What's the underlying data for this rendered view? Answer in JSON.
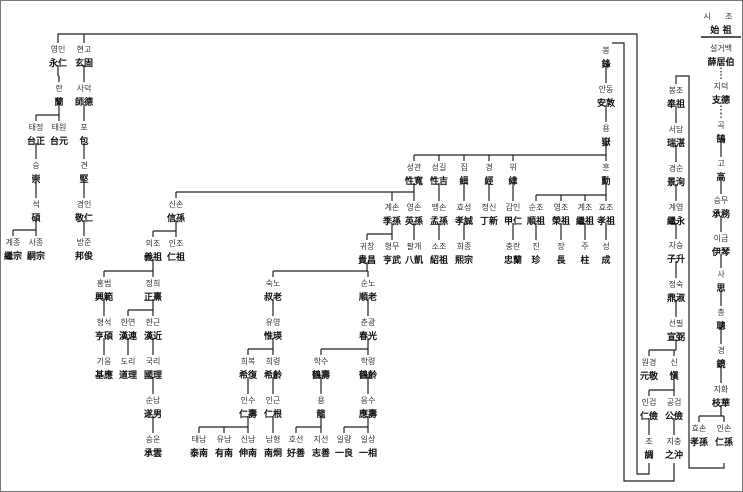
{
  "header": {
    "ko": "시 조",
    "hanja": "始 祖"
  },
  "nodes": [
    {
      "id": "seol",
      "ko": "설거백",
      "hj": "薛居伯"
    },
    {
      "id": "jideok",
      "ko": "지덕",
      "hj": "支德",
      "parent": "seol",
      "dotted": true
    },
    {
      "id": "gok",
      "ko": "곡",
      "hj": "鵠",
      "parent": "jideok",
      "dotted": true
    },
    {
      "id": "go",
      "ko": "고",
      "hj": "高",
      "parent": "gok"
    },
    {
      "id": "seungmu",
      "ko": "승무",
      "hj": "承務",
      "parent": "go"
    },
    {
      "id": "igeum",
      "ko": "이금",
      "hj": "伊琴",
      "parent": "seungmu"
    },
    {
      "id": "sa",
      "ko": "사",
      "hj": "思",
      "parent": "igeum"
    },
    {
      "id": "chong",
      "ko": "총",
      "hj": "聰",
      "parent": "sa"
    },
    {
      "id": "gyeong2",
      "ko": "경",
      "hj": "鏡",
      "parent": "chong"
    },
    {
      "id": "jihwa",
      "ko": "지화",
      "hj": "枝華",
      "parent": "gyeong2"
    },
    {
      "id": "hyoson",
      "ko": "효손",
      "hj": "孝孫",
      "parent": "jihwa"
    },
    {
      "id": "inson",
      "ko": "인손",
      "hj": "仁孫",
      "parent": "jihwa"
    },
    {
      "id": "bongjo",
      "ko": "봉조",
      "hj": "奉祖"
    },
    {
      "id": "seodam",
      "ko": "서담",
      "hj": "瑞湛",
      "parent": "bongjo"
    },
    {
      "id": "gyeongsun",
      "ko": "경순",
      "hj": "景洵",
      "parent": "seodam"
    },
    {
      "id": "gyeyeong",
      "ko": "계영",
      "hj": "繼永",
      "parent": "gyeongsun"
    },
    {
      "id": "juseung",
      "ko": "자승",
      "hj": "子升",
      "parent": "gyeyeong"
    },
    {
      "id": "jeongsuk",
      "ko": "정숙",
      "hj": "鼎淑",
      "parent": "juseung"
    },
    {
      "id": "seonpil",
      "ko": "선필",
      "hj": "宣弼",
      "parent": "jeongsuk"
    },
    {
      "id": "wongyeong",
      "ko": "원경",
      "hj": "元敬",
      "parent": "seonpil"
    },
    {
      "id": "sin",
      "ko": "신",
      "hj": "愼",
      "parent": "seonpil"
    },
    {
      "id": "ingeom",
      "ko": "인검",
      "hj": "仁儉",
      "parent": "sin"
    },
    {
      "id": "gonggeom",
      "ko": "공검",
      "hj": "公儉",
      "parent": "sin"
    },
    {
      "id": "jo",
      "ko": "조",
      "hj": "調",
      "parent": "ingeom"
    },
    {
      "id": "jichung",
      "ko": "지충",
      "hj": "之沖",
      "parent": "gonggeom"
    },
    {
      "id": "bong",
      "ko": "봉",
      "hj": "鋒"
    },
    {
      "id": "andong",
      "ko": "안동",
      "hj": "安敦",
      "parent": "bong"
    },
    {
      "id": "yong",
      "ko": "용",
      "hj": "嶽",
      "parent": "andong"
    },
    {
      "id": "hun",
      "ko": "훈",
      "hj": "勳",
      "parent": "yong"
    },
    {
      "id": "seonggwan",
      "ko": "성관",
      "hj": "性寬",
      "parent": "yong"
    },
    {
      "id": "seonggil",
      "ko": "성길",
      "hj": "性吉",
      "parent": "yong"
    },
    {
      "id": "jip",
      "ko": "집",
      "hj": "緝",
      "parent": "yong"
    },
    {
      "id": "gyeong",
      "ko": "경",
      "hj": "經",
      "parent": "yong"
    },
    {
      "id": "wi",
      "ko": "위",
      "hj": "緯",
      "parent": "yong"
    },
    {
      "id": "sunjo",
      "ko": "순조",
      "hj": "順祖",
      "parent": "hun"
    },
    {
      "id": "yeongjo",
      "ko": "영조",
      "hj": "榮祖",
      "parent": "hun"
    },
    {
      "id": "gyejo",
      "ko": "계조",
      "hj": "繼祖",
      "parent": "hun"
    },
    {
      "id": "hyojo",
      "ko": "효조",
      "hj": "孝祖",
      "parent": "hun"
    },
    {
      "id": "jin",
      "ko": "진",
      "hj": "珍",
      "parent": "sunjo"
    },
    {
      "id": "jang",
      "ko": "장",
      "hj": "長",
      "parent": "yeongjo"
    },
    {
      "id": "ju",
      "ko": "주",
      "hj": "柱",
      "parent": "gyejo"
    },
    {
      "id": "seong",
      "ko": "성",
      "hj": "成",
      "parent": "hyojo"
    },
    {
      "id": "sinson",
      "ko": "신손",
      "hj": "信孫",
      "parent": "seonggwan"
    },
    {
      "id": "gyeson",
      "ko": "계손",
      "hj": "季孫",
      "parent": "seonggwan"
    },
    {
      "id": "yeongson",
      "ko": "영손",
      "hj": "英孫",
      "parent": "seonggwan"
    },
    {
      "id": "maengson",
      "ko": "맹손",
      "hj": "孟孫",
      "parent": "seonggil"
    },
    {
      "id": "hyoseong",
      "ko": "효성",
      "hj": "孝誠",
      "parent": "jip"
    },
    {
      "id": "jeongsin",
      "ko": "정신",
      "hj": "丁新",
      "parent": "gyeong"
    },
    {
      "id": "gabin",
      "ko": "갑인",
      "hj": "甲仁",
      "parent": "wi"
    },
    {
      "id": "gwichang",
      "ko": "귀창",
      "hj": "貴昌",
      "parent": "gyeson"
    },
    {
      "id": "hyeongmu",
      "ko": "형무",
      "hj": "亨武",
      "parent": "gyeson"
    },
    {
      "id": "palgae",
      "ko": "팔개",
      "hj": "八凱",
      "parent": "yeongson"
    },
    {
      "id": "sojo",
      "ko": "소조",
      "hj": "紹祖",
      "parent": "maengson"
    },
    {
      "id": "huijong",
      "ko": "희종",
      "hj": "熙宗",
      "parent": "hyoseong"
    },
    {
      "id": "chungran",
      "ko": "충란",
      "hj": "忠蘭",
      "parent": "gabin"
    },
    {
      "id": "uijo",
      "ko": "의조",
      "hj": "義祖",
      "parent": "sinson"
    },
    {
      "id": "injo",
      "ko": "인조",
      "hj": "仁祖",
      "parent": "sinson"
    },
    {
      "id": "hongbeom",
      "ko": "홍범",
      "hj": "興範",
      "parent": "uijo"
    },
    {
      "id": "jeonghui",
      "ko": "정희",
      "hj": "正熹",
      "parent": "uijo"
    },
    {
      "id": "hyeongseok",
      "ko": "형석",
      "hj": "亨碩",
      "parent": "hongbeom"
    },
    {
      "id": "hanyeon",
      "ko": "한연",
      "hj": "漢連",
      "parent": "jeonghui"
    },
    {
      "id": "hangeun",
      "ko": "한근",
      "hj": "漢近",
      "parent": "jeonghui"
    },
    {
      "id": "gieung",
      "ko": "기응",
      "hj": "基應",
      "parent": "hyeongseok"
    },
    {
      "id": "dori",
      "ko": "도리",
      "hj": "道理",
      "parent": "hanyeon"
    },
    {
      "id": "gukri",
      "ko": "국리",
      "hj": "國理",
      "parent": "hangeun"
    },
    {
      "id": "sunnam",
      "ko": "순남",
      "hj": "遂男",
      "parent": "gukri"
    },
    {
      "id": "seungun",
      "ko": "승운",
      "hj": "承雲",
      "parent": "sunnam"
    },
    {
      "id": "suknо",
      "ko": "숙노",
      "hj": "叔老",
      "parent": "gwichang"
    },
    {
      "id": "sunno",
      "ko": "순노",
      "hj": "順老",
      "parent": "gwichang"
    },
    {
      "id": "yuyeong",
      "ko": "유영",
      "hj": "惟瑛",
      "parent": "suknо"
    },
    {
      "id": "huibok",
      "ko": "희복",
      "hj": "希復",
      "parent": "yuyeong"
    },
    {
      "id": "huiryeong",
      "ko": "희령",
      "hj": "希齡",
      "parent": "yuyeong"
    },
    {
      "id": "insu",
      "ko": "인수",
      "hj": "仁壽",
      "parent": "huibok"
    },
    {
      "id": "ingeun",
      "ko": "인근",
      "hj": "仁根",
      "parent": "huiryeong"
    },
    {
      "id": "taenam",
      "ko": "태남",
      "hj": "泰南",
      "parent": "insu"
    },
    {
      "id": "yunam",
      "ko": "유남",
      "hj": "有南",
      "parent": "insu"
    },
    {
      "id": "sinnam",
      "ko": "신남",
      "hj": "伸南",
      "parent": "insu"
    },
    {
      "id": "namhyeong",
      "ko": "남형",
      "hj": "南炯",
      "parent": "ingeun"
    },
    {
      "id": "chungwang",
      "ko": "춘광",
      "hj": "春光",
      "parent": "sunno"
    },
    {
      "id": "haksu",
      "ko": "학수",
      "hj": "鶴壽",
      "parent": "chungwang"
    },
    {
      "id": "hakryeong",
      "ko": "학령",
      "hj": "鶴齡",
      "parent": "chungwang"
    },
    {
      "id": "yong2",
      "ko": "용",
      "hj": "龍",
      "parent": "haksu"
    },
    {
      "id": "eungsu",
      "ko": "응수",
      "hj": "應壽",
      "parent": "hakryeong"
    },
    {
      "id": "hoseon",
      "ko": "호선",
      "hj": "好善",
      "parent": "yong2"
    },
    {
      "id": "jiseon",
      "ko": "지선",
      "hj": "志善",
      "parent": "yong2"
    },
    {
      "id": "illyang",
      "ko": "일량",
      "hj": "一良",
      "parent": "eungsu"
    },
    {
      "id": "ilsang",
      "ko": "일상",
      "hj": "一相",
      "parent": "eungsu"
    },
    {
      "id": "yeongin",
      "ko": "영인",
      "hj": "永仁"
    },
    {
      "id": "hyeongo",
      "ko": "현고",
      "hj": "玄固"
    },
    {
      "id": "ran",
      "ko": "란",
      "hj": "蘭",
      "parent": "yeongin"
    },
    {
      "id": "sadeok",
      "ko": "사덕",
      "hj": "師德",
      "parent": "hyeongo"
    },
    {
      "id": "taejeong",
      "ko": "태정",
      "hj": "台正",
      "parent": "ran"
    },
    {
      "id": "taewon",
      "ko": "태원",
      "hj": "台元",
      "parent": "ran"
    },
    {
      "id": "po",
      "ko": "포",
      "hj": "包",
      "parent": "sadeok"
    },
    {
      "id": "seung",
      "ko": "승",
      "hj": "崇",
      "parent": "taejeong"
    },
    {
      "id": "gyeon",
      "ko": "견",
      "hj": "堅",
      "parent": "po"
    },
    {
      "id": "seok",
      "ko": "석",
      "hj": "碩",
      "parent": "seung"
    },
    {
      "id": "gyeongin",
      "ko": "경인",
      "hj": "敬仁",
      "parent": "gyeon"
    },
    {
      "id": "gyejong",
      "ko": "계종",
      "hj": "繼宗",
      "parent": "seok"
    },
    {
      "id": "sajong",
      "ko": "사종",
      "hj": "嗣宗",
      "parent": "seok"
    },
    {
      "id": "bangjun",
      "ko": "방준",
      "hj": "邦俊",
      "parent": "gyeongin"
    }
  ]
}
